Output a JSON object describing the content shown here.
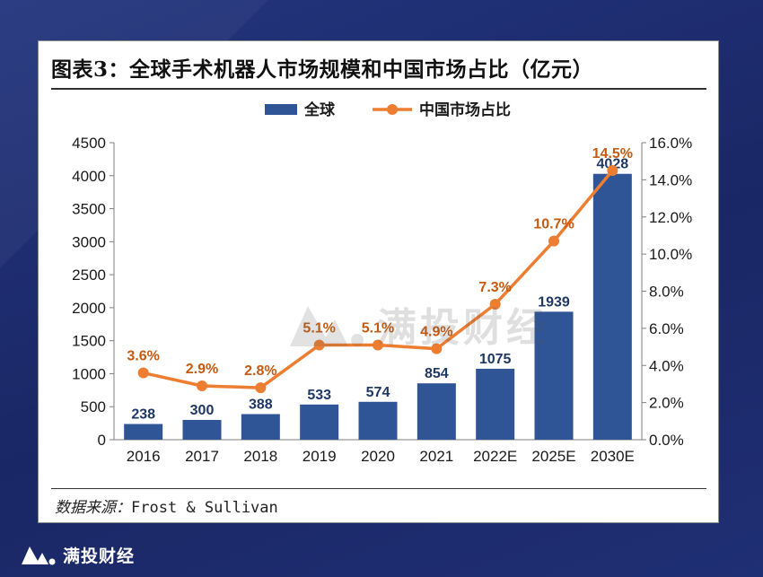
{
  "title": "图表3：全球手术机器人市场规模和中国市场占比（亿元）",
  "source_label": "数据来源：",
  "source_value": "Frost & Sullivan",
  "brand_name": "满投财经",
  "watermark_text": "满投财经",
  "colors": {
    "bar": "#2f5597",
    "line": "#ed7d31",
    "background": "#1c2b6b"
  },
  "chart_data": {
    "type": "bar+line",
    "categories": [
      "2016",
      "2017",
      "2018",
      "2019",
      "2020",
      "2021",
      "2022E",
      "2025E",
      "2030E"
    ],
    "series": [
      {
        "name": "全球",
        "type": "bar",
        "axis": "left",
        "values": [
          238,
          300,
          388,
          533,
          574,
          854,
          1075,
          1939,
          4028
        ],
        "labels": [
          "238",
          "300",
          "388",
          "533",
          "574",
          "854",
          "1075",
          "1939",
          "4028"
        ]
      },
      {
        "name": "中国市场占比",
        "type": "line",
        "axis": "right",
        "values": [
          3.6,
          2.9,
          2.8,
          5.1,
          5.1,
          4.9,
          7.3,
          10.7,
          14.5
        ],
        "labels": [
          "3.6%",
          "2.9%",
          "2.8%",
          "5.1%",
          "5.1%",
          "4.9%",
          "7.3%",
          "10.7%",
          "14.5%"
        ]
      }
    ],
    "left_axis": {
      "min": 0,
      "max": 4500,
      "ticks": [
        "0",
        "500",
        "1000",
        "1500",
        "2000",
        "2500",
        "3000",
        "3500",
        "4000",
        "4500"
      ]
    },
    "right_axis": {
      "min": 0,
      "max": 16,
      "ticks": [
        "0.0%",
        "2.0%",
        "4.0%",
        "6.0%",
        "8.0%",
        "10.0%",
        "12.0%",
        "14.0%",
        "16.0%"
      ]
    },
    "legend": [
      "全球",
      "中国市场占比"
    ],
    "legend_position": "top-center"
  }
}
